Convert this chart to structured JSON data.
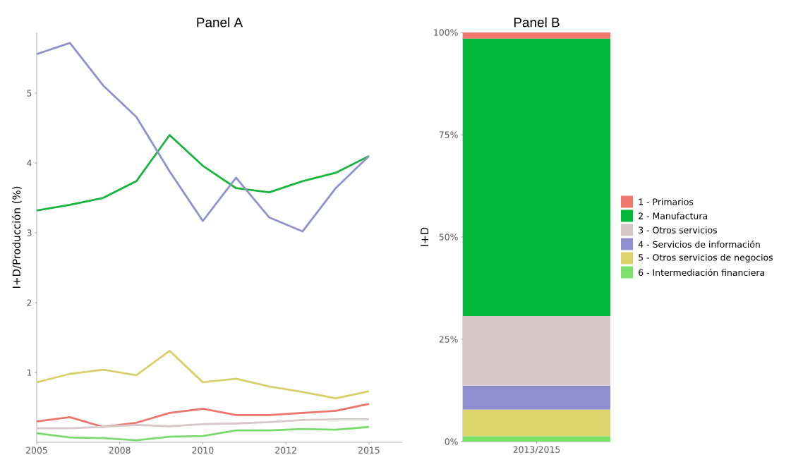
{
  "chart_data": [
    {
      "type": "line",
      "title": "Panel A",
      "ylabel": "I+D/Producción (%)",
      "x": [
        2005,
        2006,
        2007,
        2008,
        2009,
        2010,
        2011,
        2012,
        2013,
        2014,
        2015
      ],
      "xlim": [
        2005,
        2016
      ],
      "ylim": [
        0,
        5.87
      ],
      "xticks": [
        2005,
        {
          "value": 2007.5,
          "label": "2008"
        },
        2010,
        {
          "value": 2012.5,
          "label": "2012"
        },
        2015
      ],
      "yticks": [
        1,
        2,
        3,
        4,
        5
      ],
      "series": [
        {
          "color": "#ec766c",
          "values": [
            0.3,
            0.36,
            0.22,
            0.28,
            0.42,
            0.48,
            0.39,
            0.39,
            0.42,
            0.45,
            0.55
          ]
        },
        {
          "color": "#17b53e",
          "values": [
            3.32,
            3.4,
            3.5,
            3.74,
            4.4,
            3.96,
            3.64,
            3.58,
            3.74,
            3.86,
            4.1
          ]
        },
        {
          "color": "#d8c8cb",
          "values": [
            0.2,
            0.2,
            0.22,
            0.25,
            0.23,
            0.26,
            0.27,
            0.29,
            0.32,
            0.33,
            0.33
          ]
        },
        {
          "color": "#9191cc",
          "values": [
            5.56,
            5.72,
            5.11,
            4.66,
            3.88,
            3.17,
            3.79,
            3.22,
            3.02,
            3.64,
            4.1
          ]
        },
        {
          "color": "#d8d06c",
          "values": [
            0.86,
            0.98,
            1.04,
            0.96,
            1.31,
            0.86,
            0.91,
            0.8,
            0.72,
            0.63,
            0.73
          ]
        },
        {
          "color": "#78dc6c",
          "values": [
            0.13,
            0.07,
            0.06,
            0.03,
            0.08,
            0.09,
            0.17,
            0.17,
            0.19,
            0.18,
            0.22
          ]
        }
      ]
    },
    {
      "type": "bar",
      "stacked": true,
      "title": "Panel B",
      "ylabel": "I+D",
      "categories": [
        "2013/2015"
      ],
      "ylim": [
        0,
        100
      ],
      "legend": "right",
      "yticks": [
        {
          "value": 0,
          "label": "0%"
        },
        {
          "value": 25,
          "label": "25%"
        },
        {
          "value": 50,
          "label": "50%"
        },
        {
          "value": 75,
          "label": "75%"
        },
        {
          "value": 100,
          "label": "100%"
        }
      ],
      "series": [
        {
          "name": "6 - Intermediación financiera",
          "color": "#7ee06c",
          "values": [
            1.3
          ]
        },
        {
          "name": "5 - Otros servicios de negocios",
          "color": "#dcd36a",
          "values": [
            6.5
          ]
        },
        {
          "name": "4 - Servicios de información",
          "color": "#8f8fd0",
          "values": [
            5.8
          ]
        },
        {
          "name": "3 - Otros servicios",
          "color": "#d7c9cb",
          "values": [
            17.1
          ]
        },
        {
          "name": "2 - Manufactura",
          "color": "#00b93a",
          "values": [
            67.8
          ]
        },
        {
          "name": "1 - Primarios",
          "color": "#f0776c",
          "values": [
            1.5
          ]
        }
      ]
    }
  ]
}
